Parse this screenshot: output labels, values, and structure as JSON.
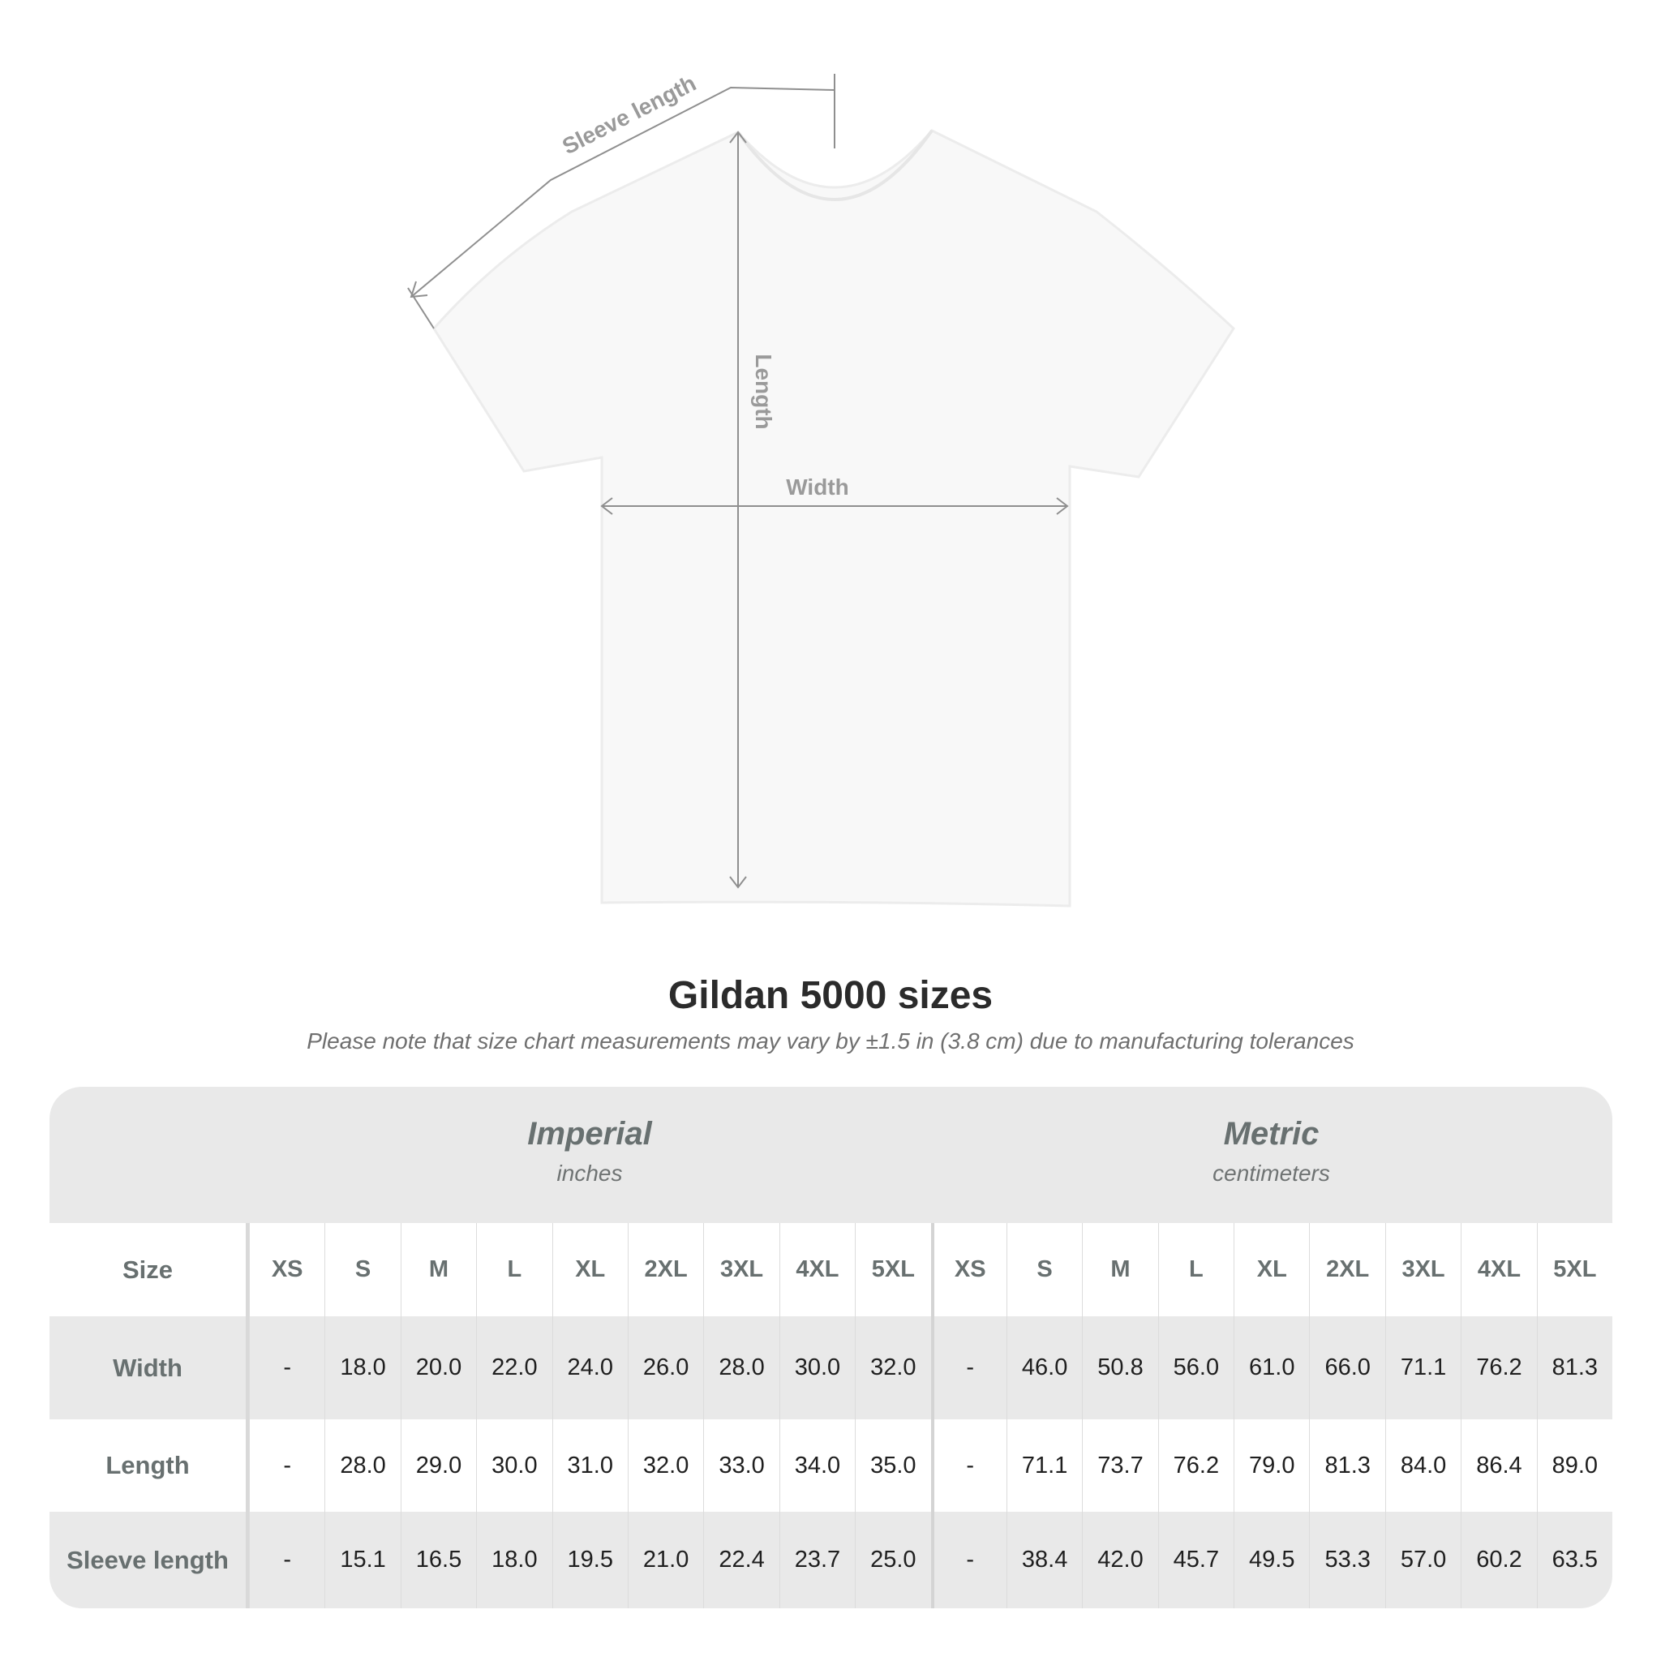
{
  "diagram": {
    "labels": {
      "sleeve_length": "Sleeve length",
      "length": "Length",
      "width": "Width"
    }
  },
  "title": "Gildan 5000 sizes",
  "subtitle": "Please note that size chart measurements may vary by ±1.5 in (3.8 cm) due to manufacturing tolerances",
  "table": {
    "imperial": {
      "name": "Imperial",
      "unit": "inches"
    },
    "metric": {
      "name": "Metric",
      "unit": "centimeters"
    },
    "size_label": "Size",
    "sizes": [
      "XS",
      "S",
      "M",
      "L",
      "XL",
      "2XL",
      "3XL",
      "4XL",
      "5XL"
    ],
    "rows": [
      {
        "label": "Width",
        "imperial": [
          "-",
          "18.0",
          "20.0",
          "22.0",
          "24.0",
          "26.0",
          "28.0",
          "30.0",
          "32.0"
        ],
        "metric": [
          "-",
          "46.0",
          "50.8",
          "56.0",
          "61.0",
          "66.0",
          "71.1",
          "76.2",
          "81.3"
        ]
      },
      {
        "label": "Length",
        "imperial": [
          "-",
          "28.0",
          "29.0",
          "30.0",
          "31.0",
          "32.0",
          "33.0",
          "34.0",
          "35.0"
        ],
        "metric": [
          "-",
          "71.1",
          "73.7",
          "76.2",
          "79.0",
          "81.3",
          "84.0",
          "86.4",
          "89.0"
        ]
      },
      {
        "label": "Sleeve length",
        "imperial": [
          "-",
          "15.1",
          "16.5",
          "18.0",
          "19.5",
          "21.0",
          "22.4",
          "23.7",
          "25.0"
        ],
        "metric": [
          "-",
          "38.4",
          "42.0",
          "45.7",
          "49.5",
          "53.3",
          "57.0",
          "60.2",
          "63.5"
        ]
      }
    ]
  }
}
